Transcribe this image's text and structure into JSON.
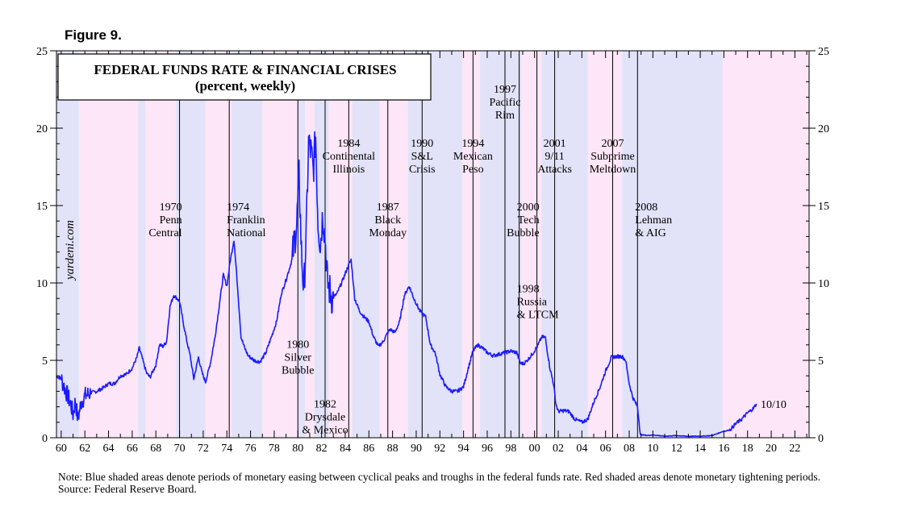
{
  "figure_label": "Figure 9.",
  "watermark": "yardeni.com",
  "notes": {
    "note": "Note: Blue shaded areas denote periods of monetary easing between cyclical peaks and troughs in the federal funds rate. Red shaded areas denote monetary tightening periods.",
    "source": "Source: Federal Reserve Board."
  },
  "chart_data": {
    "type": "line",
    "title": "FEDERAL FUNDS RATE & FINANCIAL CRISES",
    "subtitle": "(percent, weekly)",
    "xlabel": "",
    "ylabel": "",
    "xlim": [
      1959.6,
      2023.2
    ],
    "ylim": [
      0,
      25
    ],
    "y_ticks": [
      "0",
      "5",
      "10",
      "15",
      "20",
      "25"
    ],
    "x_ticks": [
      "60",
      "62",
      "64",
      "66",
      "68",
      "70",
      "72",
      "74",
      "76",
      "78",
      "80",
      "82",
      "84",
      "86",
      "88",
      "90",
      "92",
      "94",
      "96",
      "98",
      "00",
      "02",
      "04",
      "06",
      "08",
      "10",
      "12",
      "14",
      "16",
      "18",
      "20",
      "22"
    ],
    "series": [
      {
        "name": "Federal funds rate",
        "color": "#1a1aff",
        "x": [
          1959.6,
          1960.0,
          1960.4,
          1960.8,
          1961.0,
          1961.2,
          1961.4,
          1961.7,
          1962.0,
          1962.5,
          1963.0,
          1963.5,
          1964.0,
          1964.5,
          1965.0,
          1965.5,
          1966.0,
          1966.4,
          1966.6,
          1966.9,
          1967.2,
          1967.5,
          1968.0,
          1968.3,
          1968.6,
          1968.9,
          1969.2,
          1969.5,
          1969.8,
          1970.0,
          1970.3,
          1970.6,
          1970.9,
          1971.2,
          1971.6,
          1971.9,
          1972.2,
          1972.6,
          1973.0,
          1973.4,
          1973.7,
          1974.0,
          1974.3,
          1974.6,
          1974.9,
          1975.2,
          1975.5,
          1975.8,
          1976.3,
          1976.8,
          1977.3,
          1977.8,
          1978.2,
          1978.6,
          1979.0,
          1979.5,
          1979.9,
          1980.1,
          1980.3,
          1980.5,
          1980.7,
          1980.9,
          1981.1,
          1981.3,
          1981.5,
          1981.7,
          1981.9,
          1982.1,
          1982.3,
          1982.5,
          1982.7,
          1982.9,
          1983.3,
          1983.8,
          1984.2,
          1984.5,
          1984.8,
          1985.2,
          1985.6,
          1986.0,
          1986.4,
          1986.8,
          1987.2,
          1987.6,
          1987.8,
          1988.2,
          1988.6,
          1989.0,
          1989.4,
          1989.8,
          1990.3,
          1990.8,
          1991.2,
          1991.6,
          1992.0,
          1992.5,
          1993.0,
          1993.5,
          1994.0,
          1994.4,
          1994.8,
          1995.2,
          1995.6,
          1996.0,
          1996.5,
          1997.0,
          1997.5,
          1998.0,
          1998.5,
          1998.8,
          1999.1,
          1999.5,
          1999.9,
          2000.3,
          2000.6,
          2000.9,
          2001.1,
          2001.3,
          2001.6,
          2001.8,
          2002.0,
          2002.5,
          2002.9,
          2003.4,
          2004.0,
          2004.5,
          2005.0,
          2005.5,
          2006.0,
          2006.5,
          2007.0,
          2007.4,
          2007.7,
          2008.0,
          2008.3,
          2008.7,
          2008.95,
          2009.5,
          2010.0,
          2011.0,
          2012.0,
          2013.0,
          2014.0,
          2015.0,
          2015.9,
          2016.5,
          2017.0,
          2017.5,
          2018.0,
          2018.5,
          2018.75
        ],
        "y": [
          4.0,
          3.8,
          3.0,
          2.2,
          1.5,
          2.4,
          1.2,
          2.3,
          2.7,
          2.9,
          3.0,
          3.2,
          3.5,
          3.5,
          4.0,
          4.1,
          4.5,
          5.2,
          5.8,
          5.0,
          4.2,
          3.9,
          4.7,
          6.0,
          5.9,
          6.2,
          8.5,
          9.2,
          9.0,
          8.8,
          7.5,
          6.3,
          5.3,
          3.8,
          5.2,
          4.2,
          3.6,
          4.8,
          6.5,
          8.8,
          10.5,
          9.8,
          11.5,
          12.8,
          9.8,
          6.5,
          5.8,
          5.3,
          5.0,
          4.9,
          5.5,
          6.6,
          7.5,
          9.3,
          10.2,
          11.5,
          13.8,
          17.0,
          12.0,
          9.5,
          13.0,
          19.0,
          18.5,
          17.2,
          19.5,
          14.0,
          12.5,
          14.5,
          13.0,
          10.0,
          9.5,
          9.0,
          9.3,
          10.2,
          11.0,
          11.5,
          9.0,
          8.2,
          7.8,
          7.5,
          6.5,
          5.9,
          6.2,
          6.8,
          7.0,
          6.8,
          7.5,
          9.2,
          9.8,
          9.0,
          8.2,
          7.8,
          6.0,
          5.5,
          4.1,
          3.3,
          3.0,
          3.0,
          3.3,
          4.5,
          5.6,
          6.0,
          5.8,
          5.5,
          5.3,
          5.4,
          5.5,
          5.6,
          5.5,
          4.8,
          4.8,
          5.1,
          5.5,
          6.0,
          6.5,
          6.5,
          5.5,
          4.5,
          3.5,
          2.2,
          1.7,
          1.75,
          1.7,
          1.2,
          1.0,
          1.2,
          2.3,
          3.2,
          4.3,
          5.2,
          5.25,
          5.25,
          5.0,
          3.5,
          2.6,
          2.0,
          0.2,
          0.15,
          0.18,
          0.1,
          0.14,
          0.09,
          0.1,
          0.14,
          0.4,
          0.5,
          0.9,
          1.2,
          1.6,
          1.9,
          2.2
        ]
      }
    ],
    "periods_blue": [
      [
        1959.6,
        1961.5
      ],
      [
        1966.5,
        1967.1
      ],
      [
        1969.7,
        1972.2
      ],
      [
        1974.4,
        1977.0
      ],
      [
        1980.0,
        1980.6
      ],
      [
        1981.4,
        1982.6
      ],
      [
        1984.6,
        1986.9
      ],
      [
        1989.3,
        1993.9
      ],
      [
        1995.4,
        1998.9
      ],
      [
        2000.6,
        2004.5
      ],
      [
        2007.4,
        2015.9
      ]
    ],
    "periods_red": [
      [
        1961.5,
        1966.5
      ],
      [
        1967.1,
        1969.7
      ],
      [
        1972.2,
        1974.4
      ],
      [
        1977.0,
        1980.0
      ],
      [
        1980.6,
        1981.4
      ],
      [
        1982.6,
        1984.6
      ],
      [
        1986.9,
        1989.3
      ],
      [
        1993.9,
        1995.4
      ],
      [
        1998.9,
        2000.6
      ],
      [
        2004.5,
        2007.4
      ],
      [
        2015.9,
        2023.2
      ]
    ],
    "crises": [
      {
        "year": "1970",
        "name": "Penn Central",
        "x": 1970.0,
        "label_y": 14.7,
        "lines": [
          "1970",
          "Penn",
          "Central"
        ],
        "anchor": "end"
      },
      {
        "year": "1974",
        "name": "Franklin National",
        "x": 1974.2,
        "label_y": 14.7,
        "lines": [
          "1974",
          "Franklin",
          "National"
        ],
        "anchor": "start"
      },
      {
        "year": "1980",
        "name": "Silver Bubble",
        "x": 1980.0,
        "label_y": 5.8,
        "lines": [
          "1980",
          "Silver",
          "Bubble"
        ],
        "anchor": "middle"
      },
      {
        "year": "1982",
        "name": "Drysdale & Mexico",
        "x": 1982.3,
        "label_y": 1.95,
        "lines": [
          "1982",
          "Drysdale",
          "& Mexico"
        ],
        "anchor": "middle"
      },
      {
        "year": "1984",
        "name": "Continental Illinois",
        "x": 1984.3,
        "label_y": 18.8,
        "lines": [
          "1984",
          "Continental",
          "Illinois"
        ],
        "anchor": "middle"
      },
      {
        "year": "1987",
        "name": "Black Monday",
        "x": 1987.6,
        "label_y": 14.7,
        "lines": [
          "1987",
          "Black",
          "Monday"
        ],
        "anchor": "middle"
      },
      {
        "year": "1990",
        "name": "S&L Crisis",
        "x": 1990.5,
        "label_y": 18.8,
        "lines": [
          "1990",
          "S&L",
          "Crisis"
        ],
        "anchor": "middle"
      },
      {
        "year": "1994",
        "name": "Mexican Peso",
        "x": 1994.8,
        "label_y": 18.8,
        "lines": [
          "1994",
          "Mexican",
          "Peso"
        ],
        "anchor": "middle"
      },
      {
        "year": "1997",
        "name": "Pacific Rim",
        "x": 1997.5,
        "label_y": 22.3,
        "lines": [
          "1997",
          "Pacific",
          "Rim"
        ],
        "anchor": "middle"
      },
      {
        "year": "1998",
        "name": "Russia & LTCM",
        "x": 1998.7,
        "label_y": 9.4,
        "lines": [
          "1998",
          "Russia",
          "& LTCM"
        ],
        "anchor": "start"
      },
      {
        "year": "2000",
        "name": "Tech Bubble",
        "x": 2000.2,
        "label_y": 14.7,
        "lines": [
          "2000",
          "Tech",
          "Bubble"
        ],
        "anchor": "end"
      },
      {
        "year": "2001",
        "name": "9/11 Attacks",
        "x": 2001.7,
        "label_y": 18.8,
        "lines": [
          "2001",
          "9/11",
          "Attacks"
        ],
        "anchor": "middle"
      },
      {
        "year": "2007",
        "name": "Subprime Meltdown",
        "x": 2006.6,
        "label_y": 18.8,
        "lines": [
          "2007",
          "Subprime",
          "Meltdown"
        ],
        "anchor": "middle"
      },
      {
        "year": "2008",
        "name": "Lehman & AIG",
        "x": 2008.7,
        "label_y": 14.7,
        "lines": [
          "2008",
          "Lehman",
          "& AIG"
        ],
        "anchor": "start"
      }
    ],
    "end_label": "10/10",
    "legend": "none"
  },
  "colors": {
    "blue_shade": "#e2e2f8",
    "red_shade": "#fde6f7",
    "line": "#1a1aff",
    "frame": "#000000"
  }
}
